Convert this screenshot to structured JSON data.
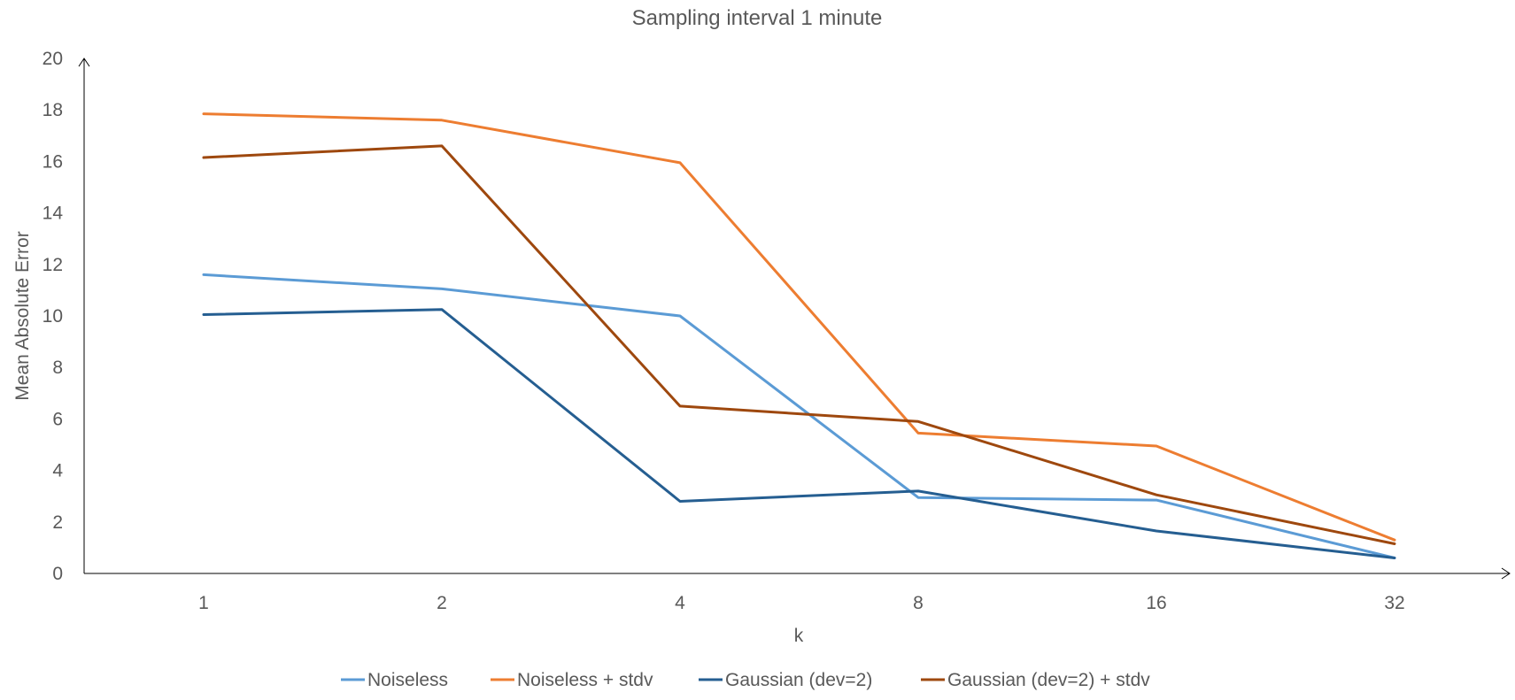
{
  "chart_data": {
    "type": "line",
    "title": "Sampling interval 1 minute",
    "xlabel": "k",
    "ylabel": "Mean Absolute Error",
    "categories": [
      "1",
      "2",
      "4",
      "8",
      "16",
      "32"
    ],
    "ylim": [
      0,
      20
    ],
    "yticks": [
      0,
      2,
      4,
      6,
      8,
      10,
      12,
      14,
      16,
      18,
      20
    ],
    "grid": false,
    "legend_position": "bottom",
    "series": [
      {
        "name": "Noiseless",
        "color": "#5B9BD5",
        "values": [
          11.6,
          11.05,
          10.0,
          2.95,
          2.85,
          0.6
        ]
      },
      {
        "name": "Noiseless + stdv",
        "color": "#ED7D31",
        "values": [
          17.85,
          17.6,
          15.95,
          5.45,
          4.95,
          1.3
        ]
      },
      {
        "name": "Gaussian (dev=2)",
        "color": "#255E91",
        "values": [
          10.05,
          10.25,
          2.8,
          3.2,
          1.65,
          0.6
        ]
      },
      {
        "name": "Gaussian (dev=2) + stdv",
        "color": "#9E480E",
        "values": [
          16.15,
          16.6,
          6.5,
          5.9,
          3.05,
          1.15
        ]
      }
    ]
  }
}
